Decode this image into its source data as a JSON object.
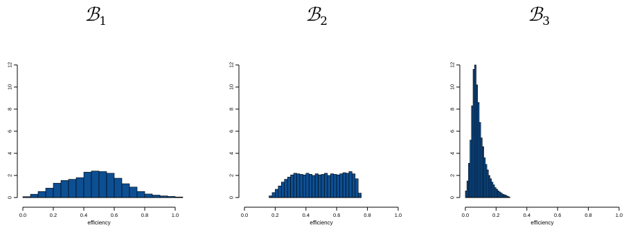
{
  "chart_data": [
    {
      "type": "bar",
      "title": "ℬ",
      "title_subscript": "1",
      "xlabel": "efficiency",
      "ylabel": "",
      "xlim": [
        0,
        1.05
      ],
      "ylim": [
        0,
        12
      ],
      "xticks": [
        "0.0",
        "0.2",
        "0.4",
        "0.6",
        "0.8",
        "1.0"
      ],
      "yticks": [
        "0",
        "2",
        "4",
        "6",
        "8",
        "10",
        "12"
      ],
      "bin_width": 0.05,
      "bins_start": 0.0,
      "values": [
        0.08,
        0.3,
        0.55,
        0.85,
        1.3,
        1.55,
        1.65,
        1.8,
        2.3,
        2.4,
        2.35,
        2.2,
        1.75,
        1.25,
        0.95,
        0.55,
        0.32,
        0.22,
        0.15,
        0.1,
        0.05
      ],
      "bar_color": "#0d4f93"
    },
    {
      "type": "bar",
      "title": "ℬ",
      "title_subscript": "2",
      "xlabel": "efficiency",
      "ylabel": "",
      "xlim": [
        0,
        1.0
      ],
      "ylim": [
        0,
        12
      ],
      "xticks": [
        "0.0",
        "0.2",
        "0.4",
        "0.6",
        "0.8",
        "1.0"
      ],
      "yticks": [
        "0",
        "2",
        "4",
        "6",
        "8",
        "10",
        "12"
      ],
      "bin_width": 0.02,
      "bins_start": 0.16,
      "values": [
        0.15,
        0.45,
        0.75,
        1.05,
        1.4,
        1.65,
        1.85,
        2.05,
        2.2,
        2.15,
        2.1,
        2.05,
        2.2,
        2.1,
        2.0,
        2.15,
        2.05,
        2.1,
        2.2,
        2.0,
        2.15,
        2.1,
        2.05,
        2.15,
        2.25,
        2.2,
        2.35,
        2.15,
        1.7,
        0.4
      ],
      "bar_color": "#0d4f93"
    },
    {
      "type": "bar",
      "title": "ℬ",
      "title_subscript": "3",
      "xlabel": "efficiency",
      "ylabel": "",
      "xlim": [
        0,
        1.0
      ],
      "ylim": [
        0,
        12
      ],
      "xticks": [
        "0.0",
        "0.2",
        "0.4",
        "0.6",
        "0.8",
        "1.0"
      ],
      "yticks": [
        "0",
        "2",
        "4",
        "6",
        "8",
        "10",
        "12"
      ],
      "bin_width": 0.01,
      "bins_start": 0.0,
      "values": [
        0.6,
        1.5,
        3.1,
        5.2,
        8.3,
        11.6,
        12.0,
        10.2,
        8.6,
        6.8,
        5.4,
        4.6,
        3.6,
        3.0,
        2.5,
        2.0,
        1.7,
        1.4,
        1.15,
        0.9,
        0.75,
        0.6,
        0.5,
        0.4,
        0.3,
        0.25,
        0.2,
        0.12,
        0.06
      ],
      "bar_color": "#0d4f93"
    }
  ]
}
